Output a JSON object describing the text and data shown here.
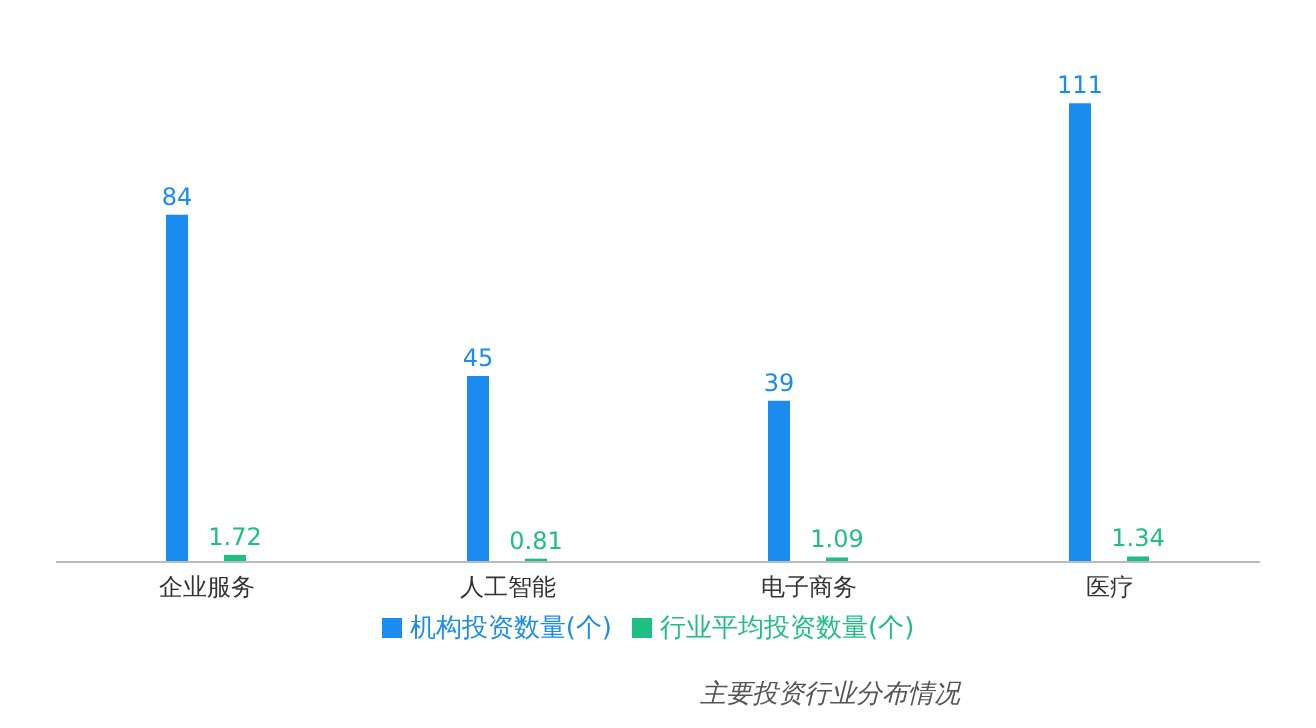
{
  "chart_data": {
    "type": "bar",
    "categories": [
      "企业服务",
      "人工智能",
      "电子商务",
      "医疗"
    ],
    "series": [
      {
        "name": "机构投资数量(个)",
        "color": "#1a8cf0",
        "values": [
          84,
          45,
          39,
          111
        ]
      },
      {
        "name": "行业平均投资数量(个)",
        "color": "#1fbf83",
        "values": [
          1.72,
          0.81,
          1.09,
          1.34
        ]
      }
    ],
    "data_labels": true,
    "legend": "bottom",
    "grid": false,
    "annotations": [
      "主要投资行业分布情况"
    ]
  }
}
